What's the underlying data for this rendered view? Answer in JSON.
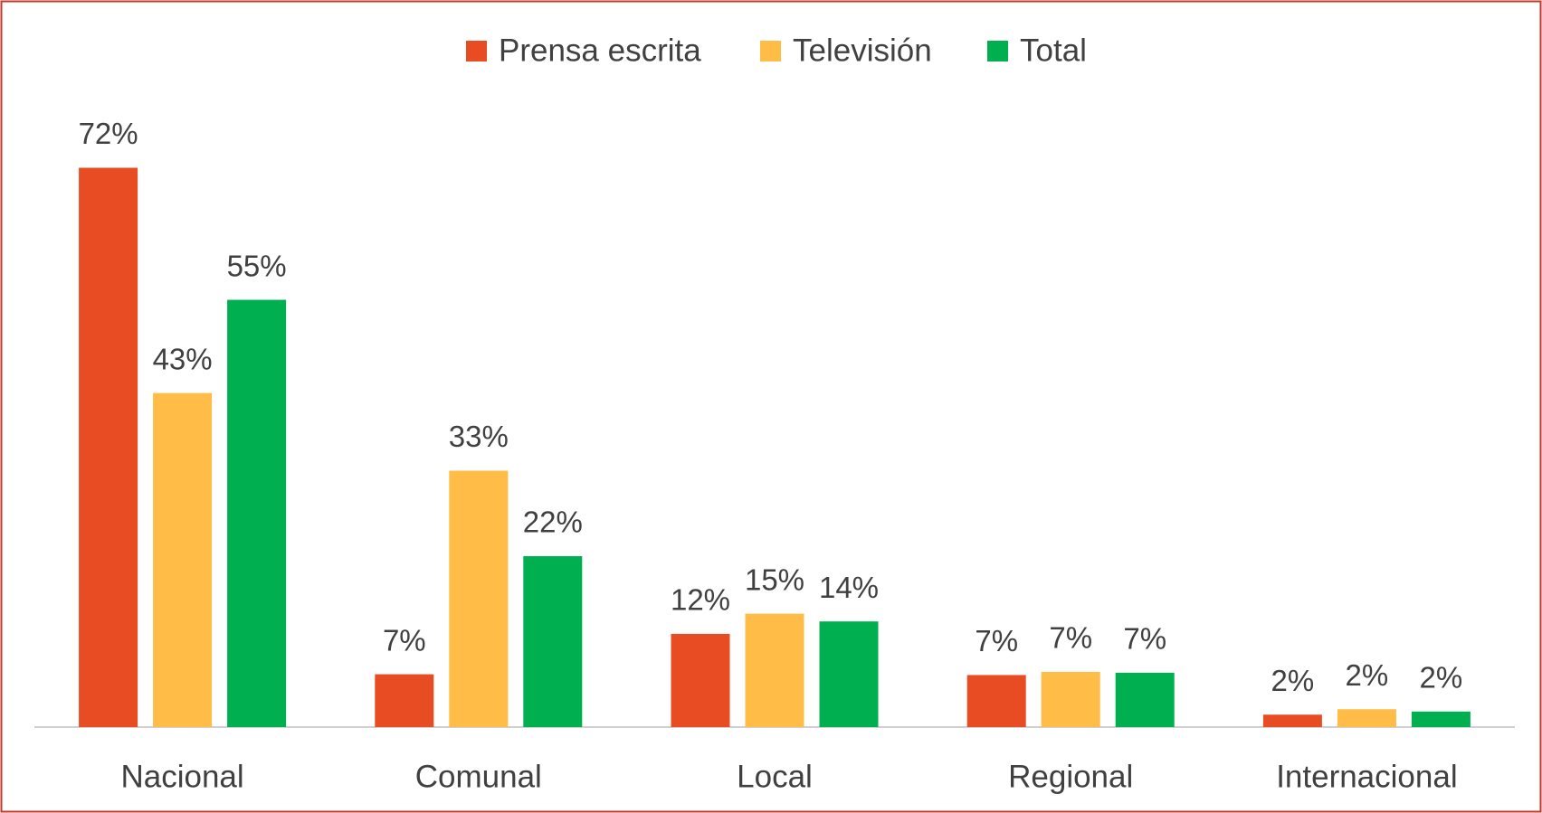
{
  "chart_data": {
    "type": "bar",
    "categories": [
      "Nacional",
      "Comunal",
      "Local",
      "Regional",
      "Internacional"
    ],
    "series": [
      {
        "name": "Prensa escrita",
        "color": "#e84c22",
        "values": [
          72,
          6.8,
          12,
          6.7,
          1.6
        ],
        "value_labels": [
          "72%",
          "7%",
          "12%",
          "7%",
          "2%"
        ]
      },
      {
        "name": "Televisión",
        "color": "#ffbc47",
        "values": [
          43,
          33,
          14.6,
          7.1,
          2.3
        ],
        "value_labels": [
          "43%",
          "33%",
          "15%",
          "7%",
          "2%"
        ]
      },
      {
        "name": "Total",
        "color": "#00b050",
        "values": [
          55,
          22,
          13.6,
          7.0,
          2.0
        ],
        "value_labels": [
          "55%",
          "22%",
          "14%",
          "7%",
          "2%"
        ]
      }
    ],
    "legend": "top"
  }
}
